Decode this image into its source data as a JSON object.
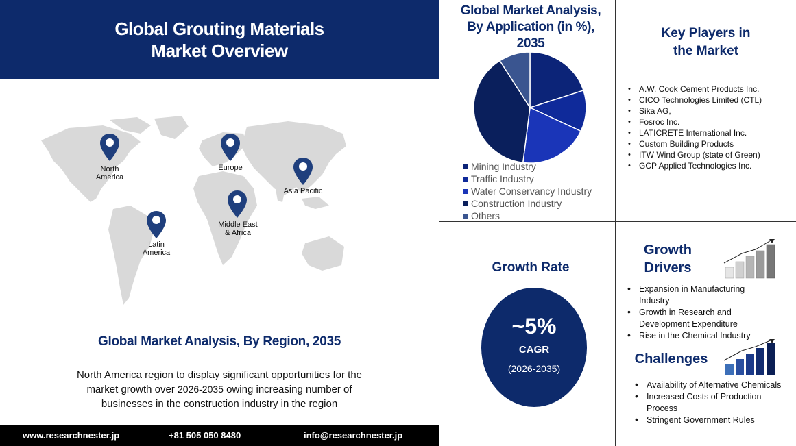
{
  "header": {
    "title_line1": "Global Grouting Materials",
    "title_line2": "Market Overview"
  },
  "regions": [
    {
      "line1": "North",
      "line2": "America"
    },
    {
      "line1": "Europe",
      "line2": ""
    },
    {
      "line1": "Asia Pacific",
      "line2": ""
    },
    {
      "line1": "Middle East",
      "line2": "& Africa"
    },
    {
      "line1": "Latin",
      "line2": "America"
    }
  ],
  "region_section": {
    "title": "Global Market Analysis, By Region, 2035",
    "desc_part1": "North America region to display significant opportunities for the market growth over",
    "years": "2026-2035",
    "desc_part2": "owing increasing number of businesses in the construction industry in the region"
  },
  "footer": {
    "website": "www.researchnester.jp",
    "phone": "+81 505 050 8480",
    "email": "info@researchnester.jp"
  },
  "application": {
    "title_line1": "Global Market Analysis,",
    "title_line2": "By Application (in %),",
    "title_line3": "2035"
  },
  "chart_data": {
    "type": "pie",
    "title": "Global Market Analysis, By Application (in %), 2035",
    "categories": [
      "Mining Industry",
      "Traffic Industry",
      "Water Conservancy Industry",
      "Construction Industry",
      "Others"
    ],
    "values": [
      20,
      12,
      20,
      39,
      9
    ],
    "colors": [
      "#0c2478",
      "#0f2a9a",
      "#1a35b8",
      "#0a1f5c",
      "#3a5590"
    ],
    "legend_position": "bottom"
  },
  "key_players": {
    "title_line1": "Key Players in",
    "title_line2": "the Market",
    "items": [
      "A.W. Cook Cement Products Inc.",
      "CICO Technologies Limited (CTL)",
      "Sika AG,",
      "Fosroc Inc.",
      "LATICRETE International Inc.",
      "Custom Building Products",
      "ITW Wind Group (state of Green)",
      "GCP Applied Technologies Inc."
    ]
  },
  "growth_rate": {
    "title": "Growth Rate",
    "value": "~5%",
    "label": "CAGR",
    "period": "(2026-2035)"
  },
  "growth_drivers": {
    "title_line1": "Growth",
    "title_line2": "Drivers",
    "items": [
      "Expansion in Manufacturing Industry",
      "Growth in Research and Development Expenditure",
      "Rise in the Chemical Industry"
    ]
  },
  "challenges": {
    "title": "Challenges",
    "items": [
      "Availability of Alternative Chemicals",
      "Increased Costs of Production Process",
      "Stringent Government Rules"
    ]
  },
  "colors": {
    "navy": "#0d2a6b",
    "map_gray": "#d9d9d9",
    "pin": "#1f3f7d"
  }
}
